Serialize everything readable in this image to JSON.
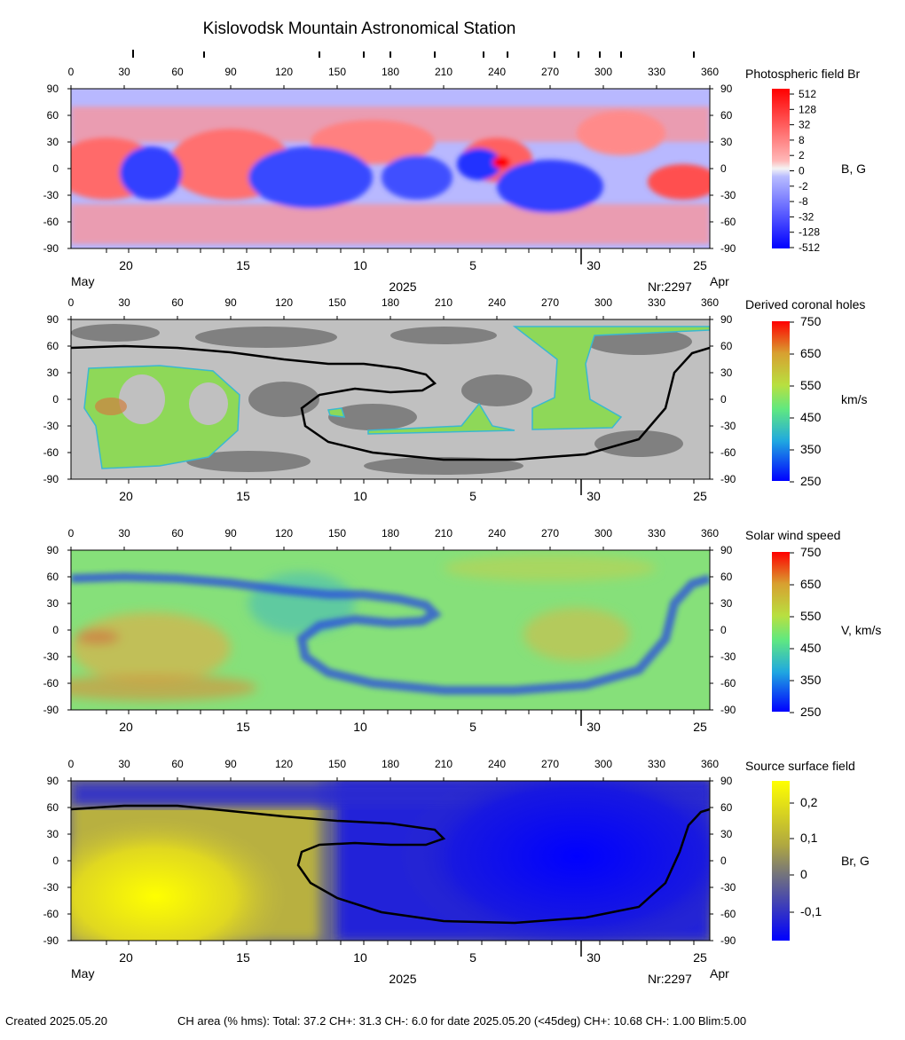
{
  "page": {
    "title": "Kislovodsk Mountain Astronomical Station",
    "footer_created": "Created  2025.05.20",
    "footer_stats": "CH area (% hms): Total: 37.2 CH+: 31.3   CH-: 6.0 for date 2025.05.20 (<45deg) CH+: 10.68    CH-: 1.00 Blim:5.00"
  },
  "axes": {
    "lon_ticks": [
      "0",
      "30",
      "60",
      "90",
      "120",
      "150",
      "180",
      "210",
      "240",
      "270",
      "300",
      "330",
      "360"
    ],
    "lat_ticks": [
      "90",
      "60",
      "30",
      "0",
      "-30",
      "-60",
      "-90"
    ],
    "date_ticks": [
      "20",
      "15",
      "10",
      "5",
      "30",
      "25"
    ],
    "month_left": "May",
    "month_right": "Apr",
    "year": "2025",
    "rotation": "Nr:2297"
  },
  "chart_data": [
    {
      "type": "heatmap",
      "title": "Photospheric field Br",
      "colorbar_label": "B, G",
      "colorbar_ticks": [
        "512",
        "128",
        "32",
        "8",
        "2",
        "0",
        "-2",
        "-8",
        "-32",
        "-128",
        "-512"
      ],
      "xlim": [
        0,
        360
      ],
      "ylim": [
        -90,
        90
      ],
      "show_dates": true
    },
    {
      "type": "heatmap",
      "title": "Derived coronal holes",
      "colorbar_label": "km/s",
      "colorbar_ticks": [
        "750",
        "650",
        "550",
        "450",
        "350",
        "250"
      ],
      "xlim": [
        0,
        360
      ],
      "ylim": [
        -90,
        90
      ],
      "show_dates": false,
      "neutral_line": [
        [
          0,
          58
        ],
        [
          30,
          60
        ],
        [
          60,
          58
        ],
        [
          90,
          53
        ],
        [
          120,
          45
        ],
        [
          145,
          40
        ],
        [
          165,
          40
        ],
        [
          185,
          35
        ],
        [
          200,
          28
        ],
        [
          205,
          18
        ],
        [
          198,
          10
        ],
        [
          180,
          8
        ],
        [
          160,
          12
        ],
        [
          140,
          5
        ],
        [
          130,
          -10
        ],
        [
          132,
          -30
        ],
        [
          145,
          -48
        ],
        [
          170,
          -60
        ],
        [
          210,
          -68
        ],
        [
          250,
          -68
        ],
        [
          290,
          -62
        ],
        [
          320,
          -45
        ],
        [
          335,
          -10
        ],
        [
          340,
          30
        ],
        [
          350,
          52
        ],
        [
          360,
          58
        ]
      ]
    },
    {
      "type": "heatmap",
      "title": "Solar wind speed",
      "colorbar_label": "V, km/s",
      "colorbar_ticks": [
        "750",
        "650",
        "550",
        "450",
        "350",
        "250"
      ],
      "xlim": [
        0,
        360
      ],
      "ylim": [
        -90,
        90
      ],
      "show_dates": false
    },
    {
      "type": "heatmap",
      "title": "Source surface field",
      "colorbar_label": "Br, G",
      "colorbar_ticks": [
        "0,2",
        "0,1",
        "0",
        "-0,1"
      ],
      "xlim": [
        0,
        360
      ],
      "ylim": [
        -90,
        90
      ],
      "show_dates": true,
      "neutral_line": [
        [
          0,
          58
        ],
        [
          30,
          62
        ],
        [
          60,
          62
        ],
        [
          90,
          56
        ],
        [
          120,
          50
        ],
        [
          150,
          45
        ],
        [
          180,
          42
        ],
        [
          205,
          35
        ],
        [
          210,
          25
        ],
        [
          200,
          18
        ],
        [
          180,
          18
        ],
        [
          160,
          20
        ],
        [
          140,
          18
        ],
        [
          130,
          10
        ],
        [
          128,
          -5
        ],
        [
          135,
          -25
        ],
        [
          150,
          -42
        ],
        [
          175,
          -58
        ],
        [
          210,
          -68
        ],
        [
          250,
          -70
        ],
        [
          290,
          -64
        ],
        [
          320,
          -52
        ],
        [
          335,
          -25
        ],
        [
          343,
          10
        ],
        [
          348,
          40
        ],
        [
          355,
          55
        ],
        [
          360,
          58
        ]
      ]
    }
  ],
  "colors": {
    "positive": "#ff2020",
    "negative": "#1f2cff",
    "ch_gray_light": "#c0c0c0",
    "ch_gray_dark": "#808080",
    "wind_base": "#78e070",
    "source_yellow": "#ffff00",
    "source_blue": "#0000ff"
  }
}
